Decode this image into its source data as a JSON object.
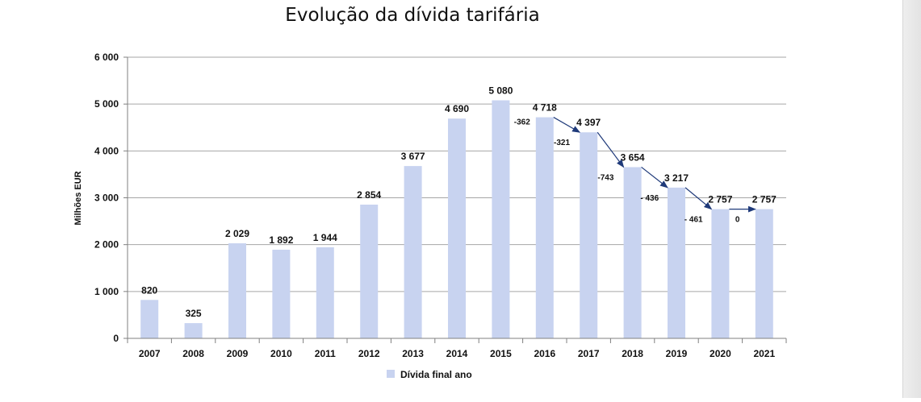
{
  "chart_data": {
    "type": "bar",
    "title": "Evolução da dívida tarifária",
    "ylabel": "Milhões EUR",
    "xlabel": "",
    "ylim": [
      0,
      6000
    ],
    "grid": true,
    "legend_position": "bottom",
    "bar_color": "#c8d3f0",
    "arrow_color": "#1f3a7a",
    "y_ticks": [
      "0",
      "1 000",
      "2 000",
      "3 000",
      "4 000",
      "5 000",
      "6 000"
    ],
    "categories": [
      "2007",
      "2008",
      "2009",
      "2010",
      "2011",
      "2012",
      "2013",
      "2014",
      "2015",
      "2016",
      "2017",
      "2018",
      "2019",
      "2020",
      "2021"
    ],
    "series": [
      {
        "name": "Dívida final ano",
        "values": [
          820,
          325,
          2029,
          1892,
          1944,
          2854,
          3677,
          4690,
          5080,
          4718,
          4397,
          3654,
          3217,
          2757,
          2757
        ],
        "labels": [
          "820",
          "325",
          "2 029",
          "1 892",
          "1 944",
          "2 854",
          "3 677",
          "4 690",
          "5 080",
          "4 718",
          "4 397",
          "3 654",
          "3 217",
          "2 757",
          "2 757"
        ]
      }
    ],
    "annotations": [
      {
        "from": "2016",
        "to": "2017",
        "text": "-321"
      },
      {
        "from": "2017",
        "to": "2018",
        "text": "-743"
      },
      {
        "from": "2018",
        "to": "2019",
        "text": "- 436"
      },
      {
        "from": "2019",
        "to": "2020",
        "text": "- 461"
      },
      {
        "from": "2020",
        "to": "2021",
        "text": "0"
      }
    ],
    "extra_annotations": [
      {
        "near": "2016",
        "text": "-362"
      }
    ]
  }
}
